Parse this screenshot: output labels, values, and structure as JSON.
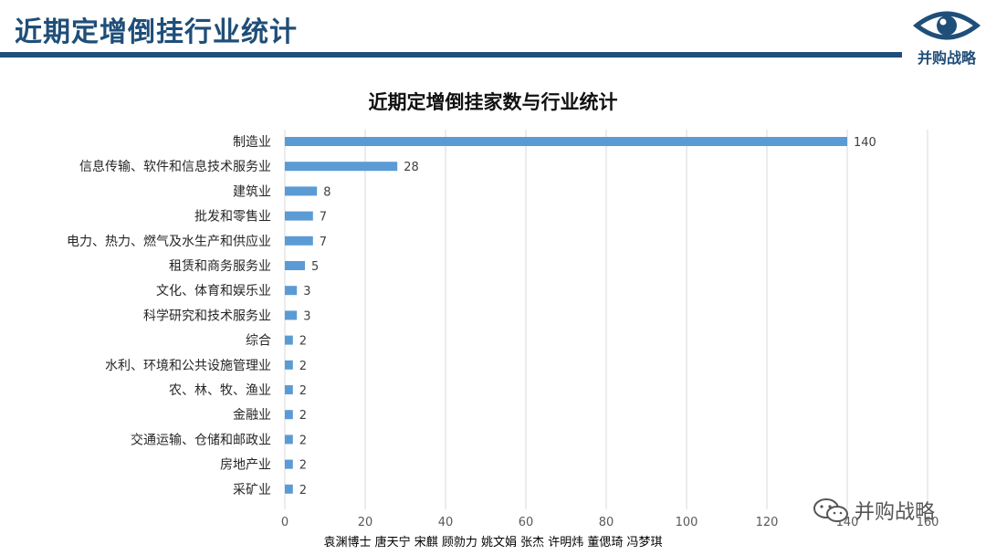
{
  "slide": {
    "title": "近期定增倒挂行业统计",
    "logo_text": "并购战略"
  },
  "chart_data": {
    "type": "bar",
    "orientation": "horizontal",
    "title": "近期定增倒挂家数与行业统计",
    "categories": [
      "制造业",
      "信息传输、软件和信息技术服务业",
      "建筑业",
      "批发和零售业",
      "电力、热力、燃气及水生产和供应业",
      "租赁和商务服务业",
      "文化、体育和娱乐业",
      "科学研究和技术服务业",
      "综合",
      "水利、环境和公共设施管理业",
      "农、林、牧、渔业",
      "金融业",
      "交通运输、仓储和邮政业",
      "房地产业",
      "采矿业"
    ],
    "values": [
      140,
      28,
      8,
      7,
      7,
      5,
      3,
      3,
      2,
      2,
      2,
      2,
      2,
      2,
      2
    ],
    "xlim": [
      0,
      160
    ],
    "xticks": [
      "0",
      "20",
      "40",
      "60",
      "80",
      "100",
      "120",
      "140",
      "160"
    ],
    "grid": true,
    "bar_color": "#5b9bd5"
  },
  "watermark": {
    "text": "并购战略"
  },
  "footer": {
    "authors": "袁渊博士 唐天宁 宋麒 顾勍力 姚文娟 张杰 许明炜 董偲琦 冯梦琪"
  },
  "colors": {
    "title": "#1f4e79",
    "bar": "#5b9bd5",
    "grid": "#d9d9d9"
  }
}
